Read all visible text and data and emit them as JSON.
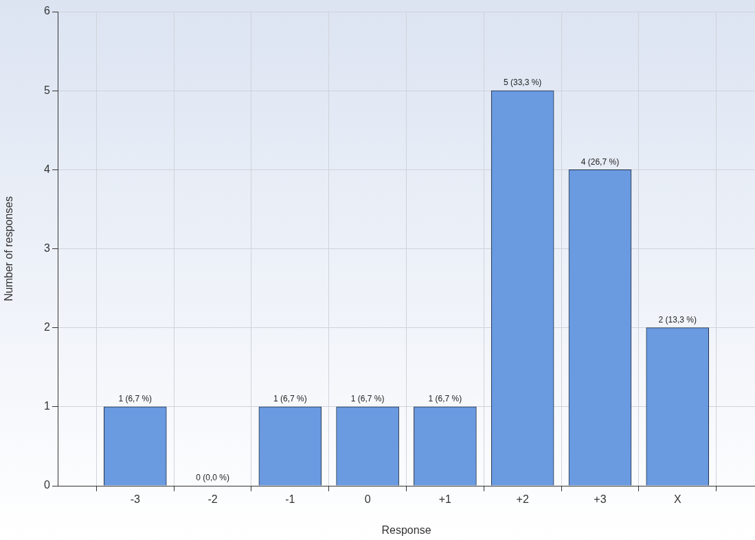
{
  "chart_data": {
    "type": "bar",
    "xlabel": "Response",
    "ylabel": "Number of responses",
    "categories": [
      "-3",
      "-2",
      "-1",
      "0",
      "+1",
      "+2",
      "+3",
      "X"
    ],
    "values": [
      1,
      0,
      1,
      1,
      1,
      5,
      4,
      2
    ],
    "value_labels": [
      "1 (6,7 %)",
      "0 (0,0 %)",
      "1 (6,7 %)",
      "1 (6,7 %)",
      "1 (6,7 %)",
      "5 (33,3 %)",
      "4 (26,7 %)",
      "2 (13,3 %)"
    ],
    "color": "#6a9ae0",
    "ylim": [
      0,
      6
    ],
    "yticks": [
      0,
      1,
      2,
      3,
      4,
      5,
      6
    ],
    "grid": true,
    "legend": false
  }
}
